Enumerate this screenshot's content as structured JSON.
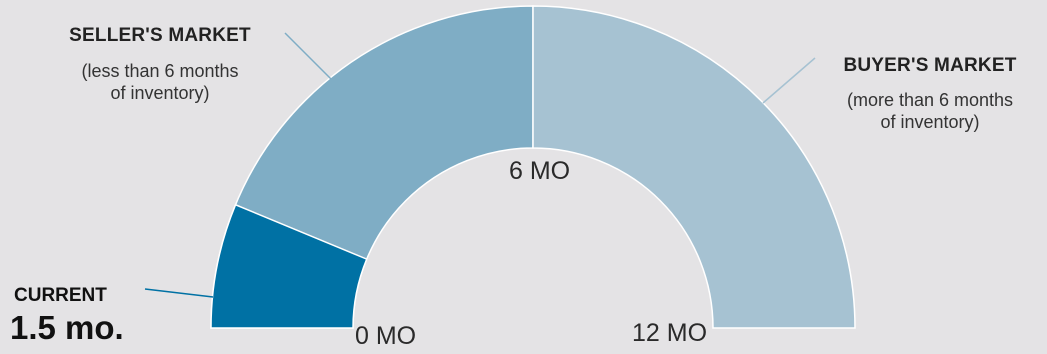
{
  "chart_data": {
    "type": "gauge",
    "min": 0,
    "max": 12,
    "midpoint": 6,
    "current_value": 1.5,
    "ticks": [
      {
        "value": 0,
        "label": "0 MO"
      },
      {
        "value": 6,
        "label": "6 MO"
      },
      {
        "value": 12,
        "label": "12 MO"
      }
    ],
    "segments": [
      {
        "name": "SELLER'S MARKET",
        "from": 0,
        "to": 6,
        "color": "#7fadc5"
      },
      {
        "name": "BUYER'S MARKET",
        "from": 6,
        "to": 12,
        "color": "#a6c2d2"
      }
    ],
    "current_color": "#0071a4",
    "annotations": {
      "seller": {
        "title": "SELLER'S MARKET",
        "line1": "(less than 6 months",
        "line2": "of inventory)"
      },
      "buyer": {
        "title": "BUYER'S MARKET",
        "line1": "(more than 6 months",
        "line2": "of inventory)"
      },
      "current": {
        "title": "CURRENT",
        "value": "1.5 mo."
      }
    }
  }
}
